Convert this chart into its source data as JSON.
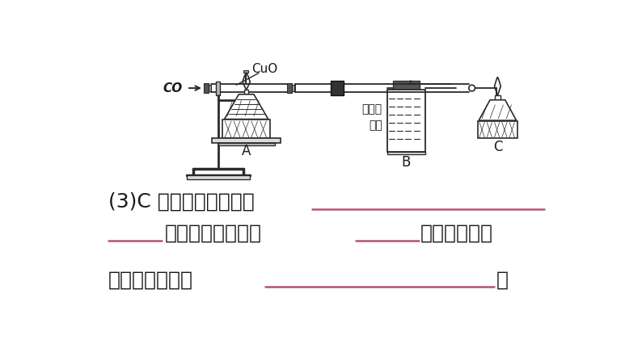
{
  "bg_color": "#ffffff",
  "line_color": "#2a2a2a",
  "underline_color": "#b5527a",
  "text_color": "#1a1a1a",
  "fig_width": 7.94,
  "fig_height": 4.47,
  "dpi": 100,
  "label_CO": "CO",
  "label_CuO": "CuO",
  "label_A": "A",
  "label_B": "B",
  "label_C": "C",
  "label_liquid": "澄清石\n灰水",
  "q3_line1": "(3)C 处酒精灯的作用是",
  "q3_dot_tail": "。尾气燃烧时产生",
  "q3_color_tail": "色火焰，反应",
  "q3_line4": "的化学方程式是",
  "q3_end": "。"
}
